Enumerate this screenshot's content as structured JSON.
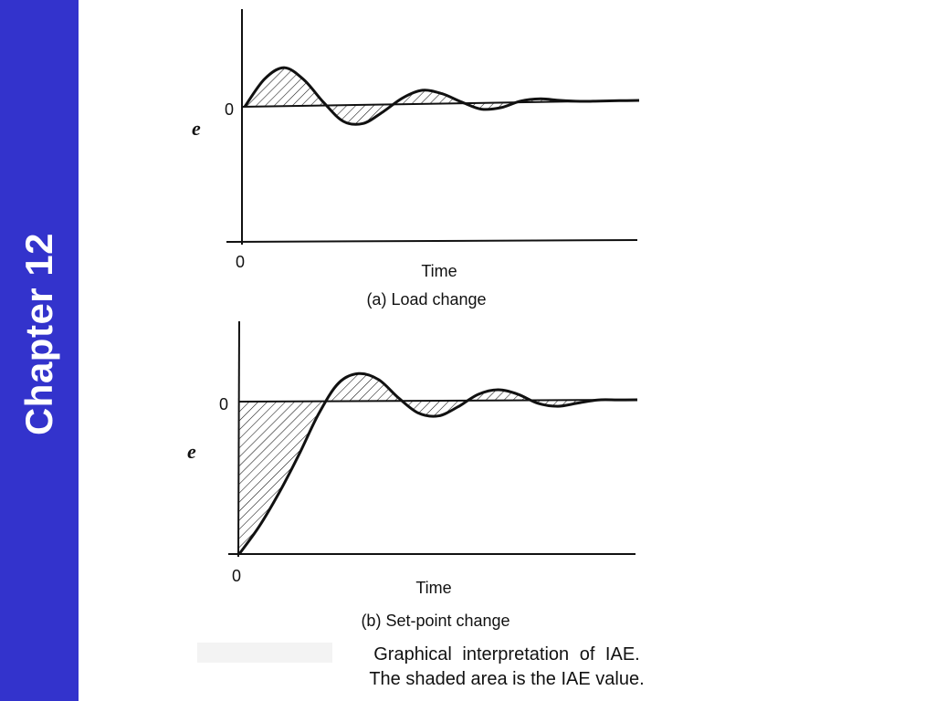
{
  "sidebar": {
    "label": "Chapter 12",
    "color": "#3333cc"
  },
  "caption": {
    "line1": "Graphical interpretation of IAE.",
    "line2": "The shaded area is the IAE value."
  },
  "chart_data": [
    {
      "type": "line",
      "title": "(a) Load change",
      "xlabel": "Time",
      "ylabel": "e",
      "x_tick_labels": [
        "0"
      ],
      "y_tick_labels": [
        "0"
      ],
      "shading": "area between curve and e = 0 (hatched)",
      "series": [
        {
          "x": [
            0,
            1,
            2,
            3,
            4,
            5,
            6,
            7,
            8,
            9,
            10,
            11,
            12,
            13,
            14,
            15,
            16,
            17,
            18,
            19,
            20
          ],
          "y": [
            0,
            0.44,
            0.62,
            0.42,
            0.05,
            -0.26,
            -0.3,
            -0.12,
            0.1,
            0.22,
            0.16,
            0.02,
            -0.1,
            -0.08,
            0.02,
            0.05,
            0.02,
            0,
            0,
            0,
            0
          ]
        }
      ],
      "xlim": [
        0,
        20
      ],
      "ylim": [
        -2,
        1.4
      ]
    },
    {
      "type": "line",
      "title": "(b) Set-point change",
      "xlabel": "Time",
      "ylabel": "e",
      "x_tick_labels": [
        "0"
      ],
      "y_tick_labels": [
        "0"
      ],
      "shading": "area between curve and e = 0 (hatched)",
      "series": [
        {
          "x": [
            0,
            1,
            2,
            3,
            4,
            5,
            6,
            7,
            8,
            9,
            10,
            11,
            12,
            13,
            14,
            15,
            16,
            17,
            18,
            19,
            20
          ],
          "y": [
            -1,
            -0.82,
            -0.6,
            -0.35,
            -0.08,
            0.12,
            0.18,
            0.14,
            0.02,
            -0.08,
            -0.1,
            -0.04,
            0.04,
            0.07,
            0.04,
            -0.02,
            -0.04,
            -0.02,
            0,
            0,
            0
          ]
        }
      ],
      "xlim": [
        0,
        20
      ],
      "ylim": [
        -1,
        0.6
      ]
    }
  ]
}
